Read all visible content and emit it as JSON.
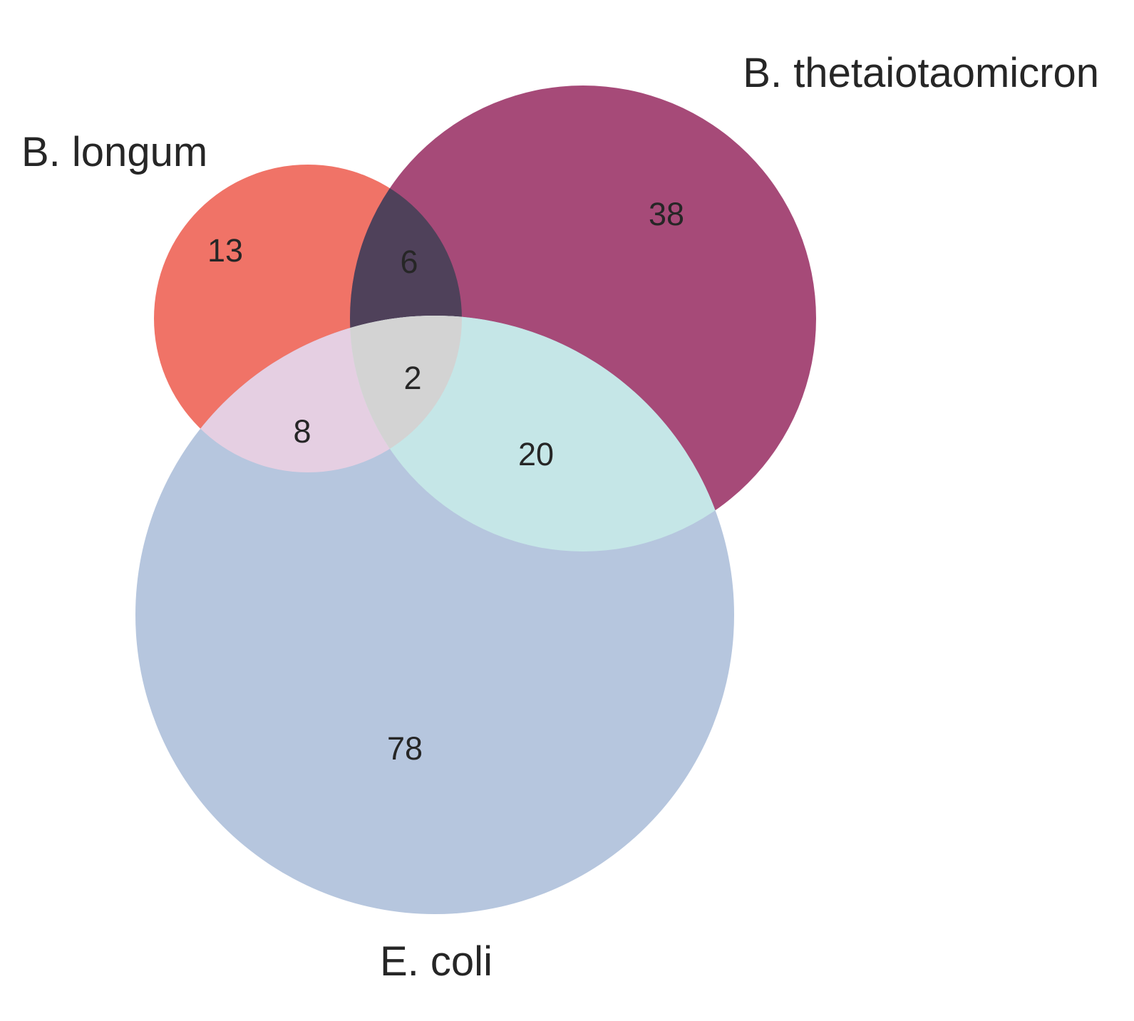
{
  "chart_data": {
    "type": "venn",
    "sets": [
      {
        "key": "A",
        "label": "B. longum",
        "color": "#f07367"
      },
      {
        "key": "B",
        "label": "B. thetaiotaomicron",
        "color": "#a64a78"
      },
      {
        "key": "C",
        "label": "E. coli",
        "color": "#b6c6de"
      }
    ],
    "regions": [
      {
        "sets": "A",
        "value": "13"
      },
      {
        "sets": "B",
        "value": "38"
      },
      {
        "sets": "C",
        "value": "78"
      },
      {
        "sets": "AB",
        "value": "6",
        "color": "#4f415a"
      },
      {
        "sets": "AC",
        "value": "8",
        "color": "#e5cfe2"
      },
      {
        "sets": "BC",
        "value": "20",
        "color": "#c5e6e7"
      },
      {
        "sets": "ABC",
        "value": "2",
        "color": "#d3d3d3"
      }
    ]
  }
}
